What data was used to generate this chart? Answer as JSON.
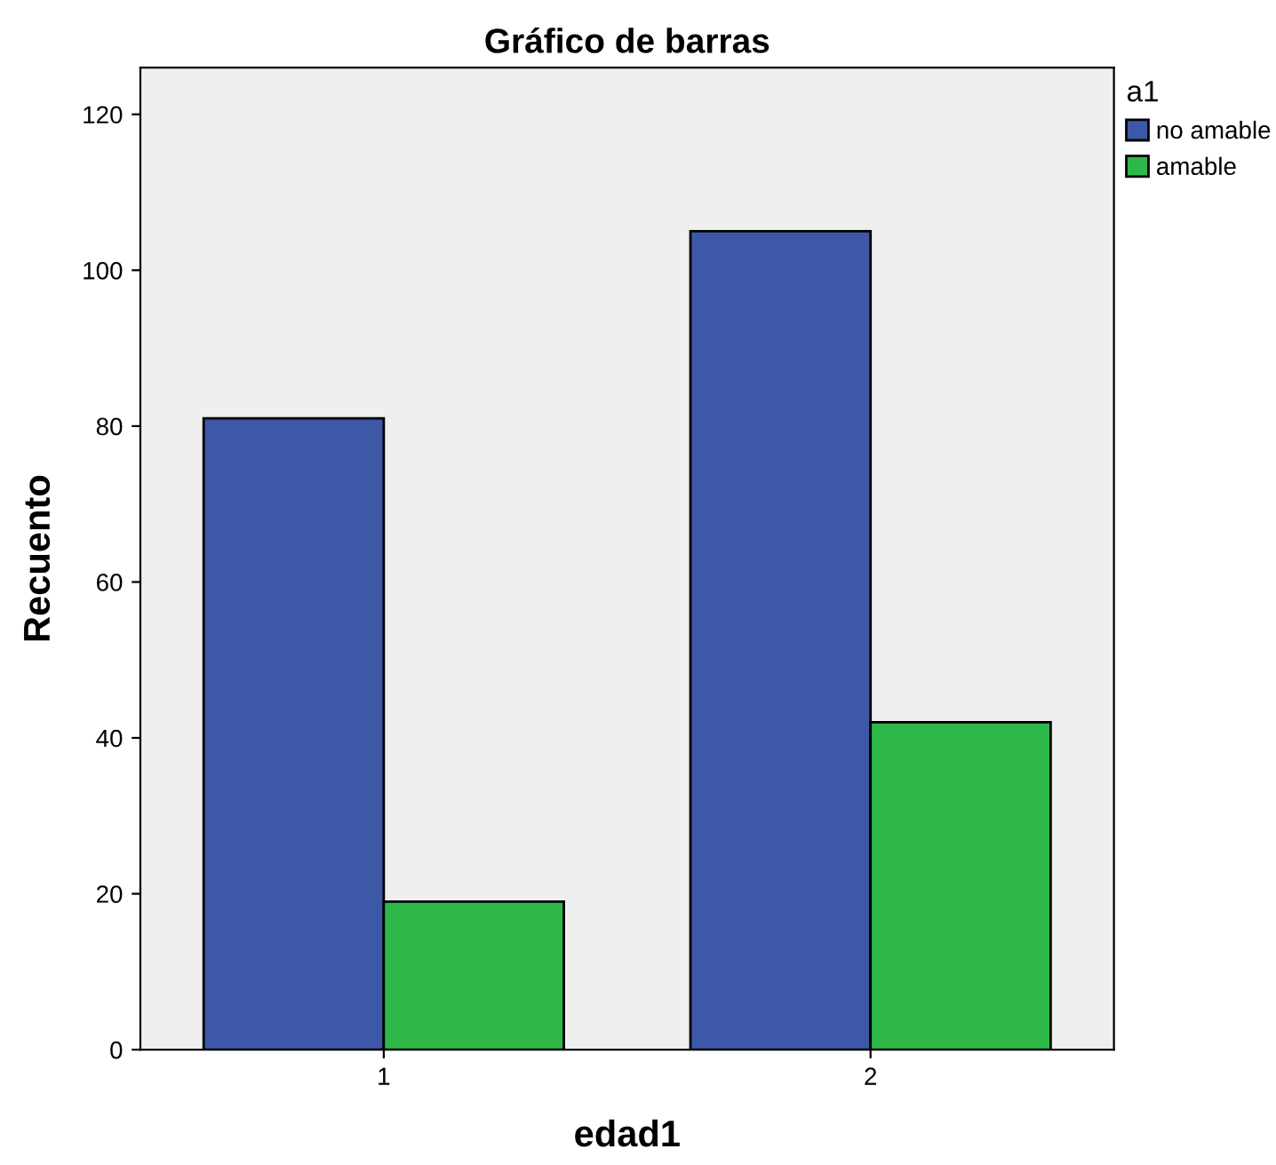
{
  "chart_data": {
    "type": "bar",
    "title": "Gráfico de barras",
    "xlabel": "edad1",
    "ylabel": "Recuento",
    "legend_title": "a1",
    "categories": [
      "1",
      "2"
    ],
    "series": [
      {
        "name": "no amable",
        "color": "#3e58a8",
        "values": [
          81,
          105
        ]
      },
      {
        "name": "amable",
        "color": "#2eb84a",
        "values": [
          19,
          42
        ]
      }
    ],
    "ylim": [
      0,
      126
    ],
    "yticks": [
      0,
      20,
      40,
      60,
      80,
      100,
      120
    ],
    "grid": false,
    "legend": "top right"
  }
}
